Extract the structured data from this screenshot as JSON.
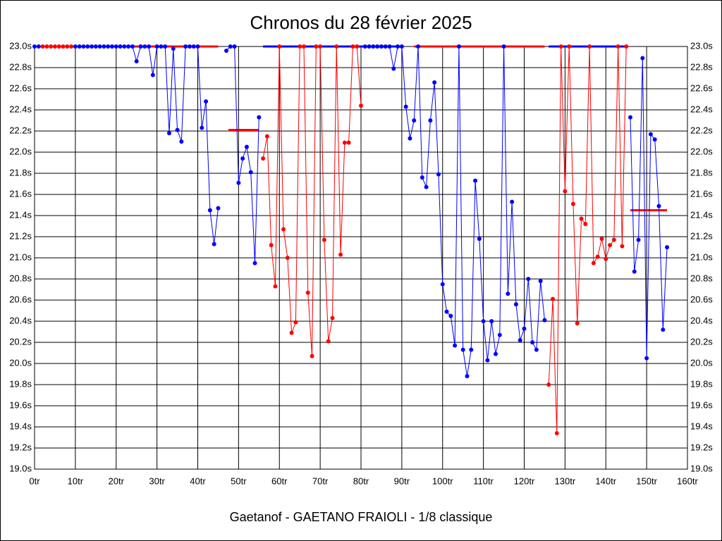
{
  "chart_data": {
    "type": "line",
    "title": "Chronos du 28 février 2025",
    "subtitle": "Gaetanof - GAETANO FRAIOLI - 1/8 classique",
    "xlim": [
      0,
      160
    ],
    "xticks": [
      {
        "value": 0,
        "label": "0tr"
      },
      {
        "value": 10,
        "label": "10tr"
      },
      {
        "value": 20,
        "label": "20tr"
      },
      {
        "value": 30,
        "label": "30tr"
      },
      {
        "value": 40,
        "label": "40tr"
      },
      {
        "value": 50,
        "label": "50tr"
      },
      {
        "value": 60,
        "label": "60tr"
      },
      {
        "value": 70,
        "label": "70tr"
      },
      {
        "value": 80,
        "label": "80tr"
      },
      {
        "value": 90,
        "label": "90tr"
      },
      {
        "value": 100,
        "label": "100tr"
      },
      {
        "value": 110,
        "label": "110tr"
      },
      {
        "value": 120,
        "label": "120tr"
      },
      {
        "value": 130,
        "label": "130tr"
      },
      {
        "value": 140,
        "label": "140tr"
      },
      {
        "value": 150,
        "label": "150tr"
      },
      {
        "value": 160,
        "label": "160tr"
      }
    ],
    "ylim": [
      19.0,
      23.0
    ],
    "yticks": [
      {
        "value": 19.0,
        "label": "19.0s"
      },
      {
        "value": 19.2,
        "label": "19.2s"
      },
      {
        "value": 19.4,
        "label": "19.4s"
      },
      {
        "value": 19.6,
        "label": "19.6s"
      },
      {
        "value": 19.8,
        "label": "19.8s"
      },
      {
        "value": 20.0,
        "label": "20.0s"
      },
      {
        "value": 20.2,
        "label": "20.2s"
      },
      {
        "value": 20.4,
        "label": "20.4s"
      },
      {
        "value": 20.6,
        "label": "20.6s"
      },
      {
        "value": 20.8,
        "label": "20.8s"
      },
      {
        "value": 21.0,
        "label": "21.0s"
      },
      {
        "value": 21.2,
        "label": "21.2s"
      },
      {
        "value": 21.4,
        "label": "21.4s"
      },
      {
        "value": 21.6,
        "label": "21.6s"
      },
      {
        "value": 21.8,
        "label": "21.8s"
      },
      {
        "value": 22.0,
        "label": "22.0s"
      },
      {
        "value": 22.2,
        "label": "22.2s"
      },
      {
        "value": 22.4,
        "label": "22.4s"
      },
      {
        "value": 22.6,
        "label": "22.6s"
      },
      {
        "value": 22.8,
        "label": "22.8s"
      },
      {
        "value": 23.0,
        "label": "23.0s"
      }
    ],
    "grid": true,
    "x": [
      0,
      1,
      2,
      3,
      4,
      5,
      6,
      7,
      8,
      9,
      10,
      11,
      12,
      13,
      14,
      15,
      16,
      17,
      18,
      19,
      20,
      21,
      22,
      23,
      24,
      25,
      26,
      27,
      28,
      29,
      30,
      31,
      32,
      33,
      34,
      35,
      36,
      37,
      38,
      39,
      40,
      41,
      42,
      43,
      44,
      45,
      46,
      47,
      48,
      49,
      50,
      51,
      52,
      53,
      54,
      55,
      56,
      57,
      58,
      59,
      60,
      61,
      62,
      63,
      64,
      65,
      66,
      67,
      68,
      69,
      70,
      71,
      72,
      73,
      74,
      75,
      76,
      77,
      78,
      79,
      80,
      81,
      82,
      83,
      84,
      85,
      86,
      87,
      88,
      89,
      90,
      91,
      92,
      93,
      94,
      95,
      96,
      97,
      98,
      99,
      100,
      101,
      102,
      103,
      104,
      105,
      106,
      107,
      108,
      109,
      110,
      111,
      112,
      113,
      114,
      115,
      116,
      117,
      118,
      119,
      120,
      121,
      122,
      123,
      124,
      125,
      126,
      127,
      128,
      129,
      130,
      131,
      132,
      133,
      134,
      135,
      136,
      137,
      138,
      139,
      140,
      141,
      142,
      143,
      144,
      145,
      146,
      147,
      148,
      149,
      150,
      151,
      152,
      153,
      154,
      155
    ],
    "series": [
      {
        "color": "#0000ff",
        "values": [
          23,
          23,
          null,
          null,
          null,
          null,
          null,
          null,
          null,
          null,
          23,
          23,
          23,
          23,
          23,
          23,
          23,
          23,
          23,
          23,
          23,
          23,
          23,
          23,
          23,
          22.86,
          23,
          23,
          23,
          22.73,
          23,
          23,
          23,
          22.18,
          22.98,
          22.21,
          22.1,
          23,
          23,
          23,
          23,
          22.23,
          22.48,
          21.45,
          21.13,
          21.47,
          null,
          22.96,
          23,
          23,
          21.71,
          21.94,
          22.05,
          21.81,
          20.95,
          22.33,
          null,
          null,
          null,
          null,
          null,
          null,
          null,
          null,
          null,
          null,
          null,
          null,
          null,
          null,
          null,
          null,
          null,
          null,
          null,
          null,
          null,
          null,
          null,
          null,
          null,
          23,
          23,
          23,
          23,
          23,
          23,
          23,
          22.79,
          23,
          23,
          22.43,
          22.13,
          22.3,
          23,
          21.76,
          21.67,
          22.3,
          22.66,
          21.79,
          20.75,
          20.49,
          20.45,
          20.17,
          23,
          20.13,
          19.88,
          20.13,
          21.73,
          21.18,
          20.4,
          20.03,
          20.4,
          20.09,
          20.27,
          23,
          20.66,
          21.53,
          20.56,
          20.22,
          20.33,
          20.8,
          20.2,
          20.13,
          20.78,
          20.41,
          null,
          null,
          null,
          null,
          null,
          null,
          null,
          null,
          null,
          null,
          null,
          null,
          null,
          null,
          null,
          null,
          null,
          null,
          null,
          null,
          22.33,
          20.87,
          21.17,
          22.89,
          20.05,
          22.17,
          22.12,
          21.49,
          20.32,
          21.1
        ]
      },
      {
        "color": "#ff0000",
        "values": [
          null,
          null,
          23,
          23,
          23,
          23,
          23,
          23,
          23,
          23,
          null,
          null,
          null,
          null,
          null,
          null,
          null,
          null,
          null,
          null,
          null,
          null,
          null,
          null,
          null,
          null,
          null,
          null,
          null,
          null,
          null,
          null,
          null,
          null,
          null,
          null,
          null,
          null,
          null,
          null,
          null,
          null,
          null,
          null,
          null,
          null,
          null,
          null,
          null,
          null,
          null,
          null,
          null,
          null,
          null,
          null,
          21.94,
          22.15,
          21.12,
          20.73,
          23,
          21.27,
          21.0,
          20.29,
          20.39,
          23,
          23,
          20.67,
          20.07,
          23,
          23,
          21.17,
          20.21,
          20.43,
          23,
          21.03,
          22.09,
          22.09,
          23,
          23,
          22.44,
          null,
          null,
          null,
          null,
          null,
          null,
          null,
          null,
          null,
          null,
          null,
          null,
          null,
          null,
          null,
          null,
          null,
          null,
          null,
          null,
          null,
          null,
          null,
          null,
          null,
          null,
          null,
          null,
          null,
          null,
          null,
          null,
          null,
          null,
          null,
          null,
          null,
          null,
          null,
          null,
          null,
          null,
          null,
          null,
          null,
          19.8,
          20.61,
          19.34,
          23,
          21.63,
          23,
          21.51,
          20.38,
          21.37,
          21.32,
          23,
          20.95,
          21.01,
          21.18,
          20.99,
          21.12,
          21.17,
          23,
          21.11,
          23,
          null,
          null,
          null,
          null,
          null,
          null,
          null,
          null,
          null,
          null
        ]
      }
    ],
    "reference_lines": [
      {
        "color": "#ff0000",
        "x": [
          23.5,
          45
        ],
        "y": 23.0
      },
      {
        "color": "#0000ff",
        "x": [
          56,
          90
        ],
        "y": 23.0
      },
      {
        "color": "#ff0000",
        "x": [
          93,
          125
        ],
        "y": 23.0
      },
      {
        "color": "#0000ff",
        "x": [
          126,
          145
        ],
        "y": 23.0
      },
      {
        "color": "#ff0000",
        "x": [
          47.5,
          55
        ],
        "y": 22.21
      },
      {
        "color": "#ff0000",
        "x": [
          146,
          155
        ],
        "y": 21.45
      }
    ]
  }
}
